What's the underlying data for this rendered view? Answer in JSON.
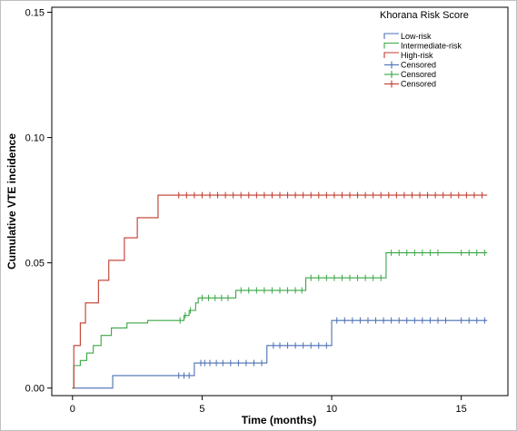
{
  "chart_data": {
    "type": "line",
    "title": "",
    "xlabel": "Time (months)",
    "ylabel": "Cumulative VTE incidence",
    "xlim": [
      -0.8,
      16.8
    ],
    "ylim": [
      -0.003,
      0.152
    ],
    "xticks": [
      0,
      5,
      10,
      15
    ],
    "xtick_labels": [
      "0",
      "5",
      "10",
      "15"
    ],
    "yticks": [
      0.0,
      0.05,
      0.1,
      0.15
    ],
    "ytick_labels": [
      "0.00",
      "0.05",
      "0.10",
      "0.15"
    ],
    "grid": false,
    "legend": {
      "title": "Khorana Risk Score",
      "placement": "top-right",
      "entries": [
        {
          "label": "Low-risk",
          "kind": "step",
          "color": "#4a6fb5"
        },
        {
          "label": "Intermediate-risk",
          "kind": "step",
          "color": "#3aa645"
        },
        {
          "label": "High-risk",
          "kind": "step",
          "color": "#c0392b"
        },
        {
          "label": "Censored",
          "kind": "censor",
          "color": "#4a6fb5"
        },
        {
          "label": "Censored",
          "kind": "censor",
          "color": "#3aa645"
        },
        {
          "label": "Censored",
          "kind": "censor",
          "color": "#c0392b"
        }
      ]
    },
    "series": [
      {
        "name": "Low-risk",
        "color": "#4a6fb5",
        "steps": [
          [
            0,
            0
          ],
          [
            1.55,
            0.005
          ],
          [
            4.7,
            0.01
          ],
          [
            7.5,
            0.017
          ],
          [
            10.0,
            0.027
          ],
          [
            16.0,
            0.027
          ]
        ],
        "censored": [
          [
            4.1,
            0.005
          ],
          [
            4.3,
            0.005
          ],
          [
            4.5,
            0.005
          ],
          [
            4.95,
            0.01
          ],
          [
            5.1,
            0.01
          ],
          [
            5.3,
            0.01
          ],
          [
            5.55,
            0.01
          ],
          [
            5.8,
            0.01
          ],
          [
            6.1,
            0.01
          ],
          [
            6.4,
            0.01
          ],
          [
            6.7,
            0.01
          ],
          [
            7.0,
            0.01
          ],
          [
            7.3,
            0.01
          ],
          [
            7.75,
            0.017
          ],
          [
            8.0,
            0.017
          ],
          [
            8.3,
            0.017
          ],
          [
            8.6,
            0.017
          ],
          [
            8.9,
            0.017
          ],
          [
            9.2,
            0.017
          ],
          [
            9.5,
            0.017
          ],
          [
            9.8,
            0.017
          ],
          [
            10.2,
            0.027
          ],
          [
            10.5,
            0.027
          ],
          [
            10.8,
            0.027
          ],
          [
            11.1,
            0.027
          ],
          [
            11.4,
            0.027
          ],
          [
            11.7,
            0.027
          ],
          [
            12.0,
            0.027
          ],
          [
            12.3,
            0.027
          ],
          [
            12.6,
            0.027
          ],
          [
            12.9,
            0.027
          ],
          [
            13.2,
            0.027
          ],
          [
            13.5,
            0.027
          ],
          [
            13.8,
            0.027
          ],
          [
            14.1,
            0.027
          ],
          [
            14.4,
            0.027
          ],
          [
            15.0,
            0.027
          ],
          [
            15.3,
            0.027
          ],
          [
            15.6,
            0.027
          ],
          [
            15.9,
            0.027
          ]
        ]
      },
      {
        "name": "Intermediate-risk",
        "color": "#3aa645",
        "steps": [
          [
            0,
            0
          ],
          [
            0.05,
            0.009
          ],
          [
            0.3,
            0.011
          ],
          [
            0.55,
            0.014
          ],
          [
            0.8,
            0.017
          ],
          [
            1.1,
            0.021
          ],
          [
            1.5,
            0.024
          ],
          [
            2.1,
            0.026
          ],
          [
            2.9,
            0.027
          ],
          [
            4.3,
            0.029
          ],
          [
            4.5,
            0.031
          ],
          [
            4.75,
            0.034
          ],
          [
            4.85,
            0.036
          ],
          [
            6.3,
            0.039
          ],
          [
            9.0,
            0.044
          ],
          [
            12.1,
            0.054
          ],
          [
            16.0,
            0.054
          ]
        ],
        "censored": [
          [
            4.15,
            0.027
          ],
          [
            4.35,
            0.029
          ],
          [
            4.55,
            0.031
          ],
          [
            5.0,
            0.036
          ],
          [
            5.25,
            0.036
          ],
          [
            5.5,
            0.036
          ],
          [
            5.75,
            0.036
          ],
          [
            6.0,
            0.036
          ],
          [
            6.5,
            0.039
          ],
          [
            6.8,
            0.039
          ],
          [
            7.1,
            0.039
          ],
          [
            7.4,
            0.039
          ],
          [
            7.7,
            0.039
          ],
          [
            8.0,
            0.039
          ],
          [
            8.3,
            0.039
          ],
          [
            8.6,
            0.039
          ],
          [
            8.85,
            0.039
          ],
          [
            9.2,
            0.044
          ],
          [
            9.5,
            0.044
          ],
          [
            9.8,
            0.044
          ],
          [
            10.1,
            0.044
          ],
          [
            10.4,
            0.044
          ],
          [
            10.7,
            0.044
          ],
          [
            11.0,
            0.044
          ],
          [
            11.3,
            0.044
          ],
          [
            11.6,
            0.044
          ],
          [
            11.9,
            0.044
          ],
          [
            12.3,
            0.054
          ],
          [
            12.6,
            0.054
          ],
          [
            12.9,
            0.054
          ],
          [
            13.2,
            0.054
          ],
          [
            13.5,
            0.054
          ],
          [
            13.8,
            0.054
          ],
          [
            14.1,
            0.054
          ],
          [
            15.0,
            0.054
          ],
          [
            15.3,
            0.054
          ],
          [
            15.6,
            0.054
          ],
          [
            15.9,
            0.054
          ]
        ]
      },
      {
        "name": "High-risk",
        "color": "#c0392b",
        "steps": [
          [
            0,
            0
          ],
          [
            0.05,
            0.017
          ],
          [
            0.3,
            0.026
          ],
          [
            0.5,
            0.034
          ],
          [
            1.0,
            0.043
          ],
          [
            1.4,
            0.051
          ],
          [
            2.0,
            0.06
          ],
          [
            2.5,
            0.068
          ],
          [
            3.3,
            0.077
          ],
          [
            16.0,
            0.077
          ]
        ],
        "censored": [
          [
            4.1,
            0.077
          ],
          [
            4.4,
            0.077
          ],
          [
            4.7,
            0.077
          ],
          [
            5.0,
            0.077
          ],
          [
            5.3,
            0.077
          ],
          [
            5.6,
            0.077
          ],
          [
            5.9,
            0.077
          ],
          [
            6.2,
            0.077
          ],
          [
            6.5,
            0.077
          ],
          [
            6.8,
            0.077
          ],
          [
            7.1,
            0.077
          ],
          [
            7.4,
            0.077
          ],
          [
            7.7,
            0.077
          ],
          [
            8.0,
            0.077
          ],
          [
            8.3,
            0.077
          ],
          [
            8.6,
            0.077
          ],
          [
            8.9,
            0.077
          ],
          [
            9.2,
            0.077
          ],
          [
            9.5,
            0.077
          ],
          [
            9.8,
            0.077
          ],
          [
            10.1,
            0.077
          ],
          [
            10.4,
            0.077
          ],
          [
            10.7,
            0.077
          ],
          [
            11.0,
            0.077
          ],
          [
            11.3,
            0.077
          ],
          [
            11.6,
            0.077
          ],
          [
            11.9,
            0.077
          ],
          [
            12.2,
            0.077
          ],
          [
            12.5,
            0.077
          ],
          [
            12.8,
            0.077
          ],
          [
            13.1,
            0.077
          ],
          [
            13.4,
            0.077
          ],
          [
            13.7,
            0.077
          ],
          [
            14.0,
            0.077
          ],
          [
            14.3,
            0.077
          ],
          [
            14.6,
            0.077
          ],
          [
            14.9,
            0.077
          ],
          [
            15.2,
            0.077
          ],
          [
            15.5,
            0.077
          ],
          [
            15.8,
            0.077
          ]
        ]
      }
    ]
  }
}
